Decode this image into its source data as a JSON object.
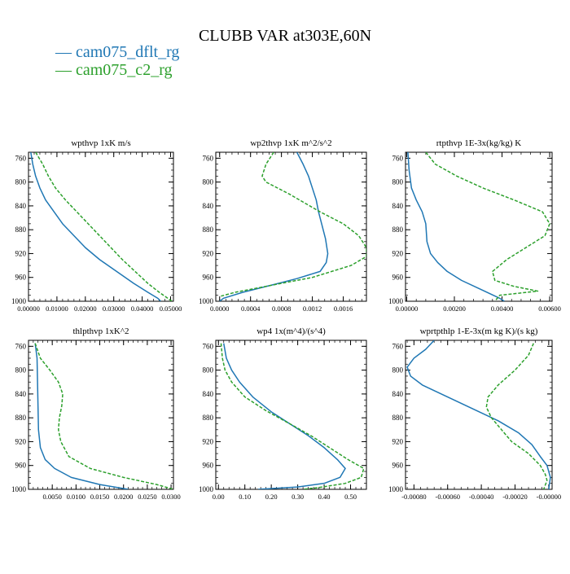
{
  "title": "CLUBB VAR at303E,60N",
  "legend": [
    {
      "label": "— cam075_dflt_rg",
      "color": "#1f77b4"
    },
    {
      "label": "— cam075_c2_rg",
      "color": "#2ca02c"
    }
  ],
  "chart_data": [
    {
      "type": "line",
      "title": "wpthvp   1xK m/s",
      "xticks": [
        "0.00000",
        "0.01000",
        "0.02000",
        "0.03000",
        "0.04000",
        "0.05000"
      ],
      "xtick_values": [
        0,
        0.01,
        0.02,
        0.03,
        0.04,
        0.05
      ],
      "xlim": [
        0,
        0.051
      ],
      "yticks": [
        "760",
        "800",
        "840",
        "880",
        "920",
        "960",
        "1000"
      ],
      "ytick_values": [
        760,
        800,
        840,
        880,
        920,
        960,
        1000
      ],
      "ylim": [
        750,
        1000
      ],
      "series": [
        {
          "color": "#1f77b4",
          "points": [
            [
              0.0008,
              750
            ],
            [
              0.0015,
              770
            ],
            [
              0.0025,
              790
            ],
            [
              0.004,
              810
            ],
            [
              0.006,
              830
            ],
            [
              0.009,
              850
            ],
            [
              0.012,
              870
            ],
            [
              0.016,
              890
            ],
            [
              0.02,
              910
            ],
            [
              0.025,
              930
            ],
            [
              0.031,
              950
            ],
            [
              0.037,
              970
            ],
            [
              0.042,
              985
            ],
            [
              0.0455,
              995
            ],
            [
              0.0465,
              1000
            ]
          ]
        },
        {
          "color": "#2ca02c",
          "points": [
            [
              0.0025,
              750
            ],
            [
              0.005,
              770
            ],
            [
              0.007,
              790
            ],
            [
              0.0095,
              810
            ],
            [
              0.013,
              830
            ],
            [
              0.017,
              850
            ],
            [
              0.021,
              870
            ],
            [
              0.025,
              890
            ],
            [
              0.029,
              910
            ],
            [
              0.033,
              930
            ],
            [
              0.0375,
              950
            ],
            [
              0.042,
              970
            ],
            [
              0.046,
              985
            ],
            [
              0.049,
              995
            ],
            [
              0.0505,
              1000
            ]
          ]
        }
      ]
    },
    {
      "type": "line",
      "title": "wp2thvp   1xK m^2/s^2",
      "xticks": [
        "0.0000",
        "0.0004",
        "0.0008",
        "0.0012",
        "0.0016"
      ],
      "xtick_values": [
        0,
        0.0004,
        0.0008,
        0.0012,
        0.0016
      ],
      "xlim": [
        -5e-05,
        0.0019
      ],
      "yticks": [
        "760",
        "800",
        "840",
        "880",
        "920",
        "960",
        "1000"
      ],
      "ytick_values": [
        760,
        800,
        840,
        880,
        920,
        960,
        1000
      ],
      "ylim": [
        750,
        1000
      ],
      "series": [
        {
          "color": "#1f77b4",
          "points": [
            [
              0.001,
              750
            ],
            [
              0.00108,
              770
            ],
            [
              0.00115,
              790
            ],
            [
              0.0012,
              810
            ],
            [
              0.00125,
              830
            ],
            [
              0.00128,
              850
            ],
            [
              0.00132,
              870
            ],
            [
              0.00137,
              895
            ],
            [
              0.0014,
              920
            ],
            [
              0.00138,
              935
            ],
            [
              0.0013,
              950
            ],
            [
              0.001,
              962
            ],
            [
              0.0007,
              972
            ],
            [
              0.0003,
              985
            ],
            [
              5e-05,
              995
            ],
            [
              0.0,
              1000
            ]
          ]
        },
        {
          "color": "#2ca02c",
          "points": [
            [
              0.0007,
              750
            ],
            [
              0.0006,
              770
            ],
            [
              0.00055,
              790
            ],
            [
              0.0006,
              800
            ],
            [
              0.0009,
              820
            ],
            [
              0.0013,
              850
            ],
            [
              0.0016,
              870
            ],
            [
              0.0018,
              890
            ],
            [
              0.0019,
              910
            ],
            [
              0.0019,
              925
            ],
            [
              0.0017,
              940
            ],
            [
              0.0012,
              960
            ],
            [
              0.0006,
              975
            ],
            [
              0.0002,
              985
            ],
            [
              0.0,
              992
            ]
          ]
        }
      ]
    },
    {
      "type": "line",
      "title": "rtpthvp   1E-3x(kg/kg) K",
      "xticks": [
        "0.00000",
        "0.00200",
        "0.00400",
        "0.00600"
      ],
      "xtick_values": [
        0,
        0.002,
        0.004,
        0.006
      ],
      "xlim": [
        -5e-05,
        0.0061
      ],
      "yticks": [
        "760",
        "800",
        "840",
        "880",
        "920",
        "960",
        "1000"
      ],
      "ytick_values": [
        760,
        800,
        840,
        880,
        920,
        960,
        1000
      ],
      "ylim": [
        750,
        1000
      ],
      "series": [
        {
          "color": "#1f77b4",
          "points": [
            [
              5e-05,
              750
            ],
            [
              0.0001,
              780
            ],
            [
              0.0002,
              810
            ],
            [
              0.0004,
              830
            ],
            [
              0.00065,
              850
            ],
            [
              0.0008,
              870
            ],
            [
              0.00085,
              900
            ],
            [
              0.001,
              920
            ],
            [
              0.0013,
              935
            ],
            [
              0.0017,
              950
            ],
            [
              0.0023,
              965
            ],
            [
              0.0031,
              980
            ],
            [
              0.0039,
              995
            ],
            [
              0.0041,
              1000
            ]
          ]
        },
        {
          "color": "#2ca02c",
          "points": [
            [
              0.0008,
              750
            ],
            [
              0.0012,
              770
            ],
            [
              0.0021,
              790
            ],
            [
              0.0032,
              810
            ],
            [
              0.0045,
              830
            ],
            [
              0.0057,
              850
            ],
            [
              0.006,
              870
            ],
            [
              0.0058,
              890
            ],
            [
              0.005,
              910
            ],
            [
              0.0042,
              930
            ],
            [
              0.0036,
              950
            ],
            [
              0.0037,
              965
            ],
            [
              0.0045,
              975
            ],
            [
              0.0055,
              983
            ],
            [
              0.0039,
              990
            ],
            [
              0.0037,
              1000
            ]
          ]
        }
      ]
    },
    {
      "type": "line",
      "title": "thlpthvp   1xK^2",
      "xticks": [
        "0.0050",
        "0.0100",
        "0.0150",
        "0.0200",
        "0.0250",
        "0.0300"
      ],
      "xtick_values": [
        0.005,
        0.01,
        0.015,
        0.02,
        0.025,
        0.03
      ],
      "xlim": [
        0,
        0.0305
      ],
      "yticks": [
        "760",
        "800",
        "840",
        "880",
        "920",
        "960",
        "1000"
      ],
      "ytick_values": [
        760,
        800,
        840,
        880,
        920,
        960,
        1000
      ],
      "ylim": [
        750,
        1000
      ],
      "series": [
        {
          "color": "#1f77b4",
          "points": [
            [
              0.0014,
              755
            ],
            [
              0.0018,
              780
            ],
            [
              0.0019,
              820
            ],
            [
              0.002,
              860
            ],
            [
              0.0021,
              900
            ],
            [
              0.0025,
              930
            ],
            [
              0.0035,
              950
            ],
            [
              0.0055,
              965
            ],
            [
              0.009,
              980
            ],
            [
              0.015,
              992
            ],
            [
              0.021,
              1000
            ]
          ]
        },
        {
          "color": "#2ca02c",
          "points": [
            [
              0.0014,
              755
            ],
            [
              0.0025,
              780
            ],
            [
              0.0045,
              800
            ],
            [
              0.0063,
              820
            ],
            [
              0.0072,
              840
            ],
            [
              0.007,
              860
            ],
            [
              0.0065,
              880
            ],
            [
              0.0063,
              900
            ],
            [
              0.0068,
              920
            ],
            [
              0.0085,
              945
            ],
            [
              0.013,
              965
            ],
            [
              0.02,
              980
            ],
            [
              0.027,
              992
            ],
            [
              0.0305,
              1000
            ]
          ]
        }
      ]
    },
    {
      "type": "line",
      "title": "wp4   1x(m^4)/(s^4)",
      "xticks": [
        "0.00",
        "0.10",
        "0.20",
        "0.30",
        "0.40",
        "0.50"
      ],
      "xtick_values": [
        0,
        0.1,
        0.2,
        0.3,
        0.4,
        0.5
      ],
      "xlim": [
        -0.01,
        0.56
      ],
      "yticks": [
        "760",
        "800",
        "840",
        "880",
        "920",
        "960",
        "1000"
      ],
      "ytick_values": [
        760,
        800,
        840,
        880,
        920,
        960,
        1000
      ],
      "ylim": [
        750,
        1000
      ],
      "series": [
        {
          "color": "#1f77b4",
          "points": [
            [
              0.02,
              755
            ],
            [
              0.03,
              780
            ],
            [
              0.05,
              800
            ],
            [
              0.08,
              820
            ],
            [
              0.13,
              845
            ],
            [
              0.2,
              870
            ],
            [
              0.27,
              890
            ],
            [
              0.34,
              910
            ],
            [
              0.4,
              930
            ],
            [
              0.45,
              950
            ],
            [
              0.48,
              965
            ],
            [
              0.46,
              980
            ],
            [
              0.4,
              990
            ],
            [
              0.3,
              996
            ],
            [
              0.15,
              1000
            ]
          ]
        },
        {
          "color": "#2ca02c",
          "points": [
            [
              0.01,
              755
            ],
            [
              0.015,
              780
            ],
            [
              0.025,
              800
            ],
            [
              0.05,
              820
            ],
            [
              0.1,
              845
            ],
            [
              0.18,
              868
            ],
            [
              0.27,
              890
            ],
            [
              0.35,
              910
            ],
            [
              0.42,
              930
            ],
            [
              0.49,
              950
            ],
            [
              0.55,
              965
            ],
            [
              0.54,
              980
            ],
            [
              0.48,
              990
            ],
            [
              0.38,
              997
            ],
            [
              0.32,
              1000
            ]
          ]
        }
      ]
    },
    {
      "type": "line",
      "title": "wprtpthlp   1-E-3x(m kg K)/(s kg)",
      "xticks": [
        "-0.00080",
        "-0.00060",
        "-0.00040",
        "-0.00020",
        "-0.00000"
      ],
      "xtick_values": [
        -0.0008,
        -0.0006,
        -0.0004,
        -0.0002,
        0
      ],
      "xlim": [
        -0.00085,
        2e-05
      ],
      "yticks": [
        "760",
        "800",
        "840",
        "880",
        "920",
        "960",
        "1000"
      ],
      "ytick_values": [
        760,
        800,
        840,
        880,
        920,
        960,
        1000
      ],
      "ylim": [
        750,
        1000
      ],
      "series": [
        {
          "color": "#1f77b4",
          "points": [
            [
              -0.00068,
              750
            ],
            [
              -0.00073,
              765
            ],
            [
              -0.0008,
              780
            ],
            [
              -0.00084,
              795
            ],
            [
              -0.00082,
              810
            ],
            [
              -0.00075,
              825
            ],
            [
              -0.0006,
              845
            ],
            [
              -0.00045,
              865
            ],
            [
              -0.0003,
              885
            ],
            [
              -0.00018,
              905
            ],
            [
              -0.0001,
              925
            ],
            [
              -5e-05,
              945
            ],
            [
              -1e-05,
              960
            ],
            [
              1e-05,
              980
            ],
            [
              0.0,
              1000
            ]
          ]
        },
        {
          "color": "#2ca02c",
          "points": [
            [
              -9e-05,
              755
            ],
            [
              -0.00012,
              775
            ],
            [
              -0.0002,
              800
            ],
            [
              -0.0003,
              825
            ],
            [
              -0.00036,
              845
            ],
            [
              -0.00037,
              862
            ],
            [
              -0.00034,
              880
            ],
            [
              -0.00028,
              900
            ],
            [
              -0.00022,
              920
            ],
            [
              -0.00012,
              940
            ],
            [
              -5e-05,
              960
            ],
            [
              -2e-05,
              975
            ],
            [
              -1e-05,
              985
            ],
            [
              -3e-05,
              1000
            ]
          ]
        }
      ]
    }
  ]
}
